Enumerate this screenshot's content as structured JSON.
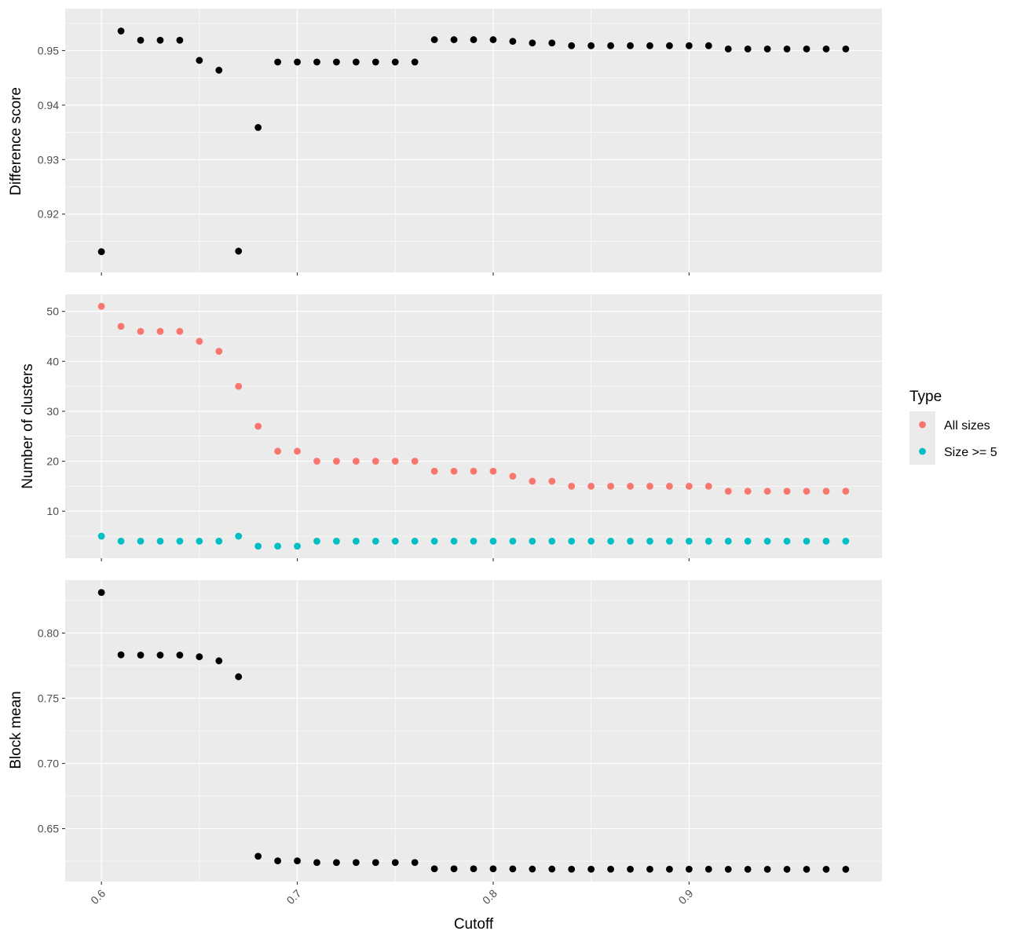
{
  "chart_data": {
    "type": "scatter",
    "xlabel": "Cutoff",
    "x_ticks": [
      "0.6",
      "0.7",
      "0.8",
      "0.9"
    ],
    "xlim": [
      0.5815,
      0.9985
    ],
    "x": [
      0.6,
      0.61,
      0.62,
      0.63,
      0.64,
      0.65,
      0.66,
      0.67,
      0.68,
      0.69,
      0.7,
      0.71,
      0.72,
      0.73,
      0.74,
      0.75,
      0.76,
      0.77,
      0.78,
      0.79,
      0.8,
      0.81,
      0.82,
      0.83,
      0.84,
      0.85,
      0.86,
      0.87,
      0.88,
      0.89,
      0.9,
      0.91,
      0.92,
      0.93,
      0.94,
      0.95,
      0.96,
      0.97,
      0.98
    ],
    "legend": {
      "title": "Type",
      "placement": "right"
    },
    "panels": [
      {
        "ylabel": "Difference score",
        "ylim": [
          0.9093,
          0.9577
        ],
        "y_ticks": [
          "0.92",
          "0.93",
          "0.94",
          "0.95"
        ],
        "series": [
          {
            "color": "#000000",
            "values": [
              0.9131,
              0.9536,
              0.9519,
              0.9519,
              0.9519,
              0.9482,
              0.9464,
              0.9132,
              0.9359,
              0.9479,
              0.9479,
              0.9479,
              0.9479,
              0.9479,
              0.9479,
              0.9479,
              0.9479,
              0.952,
              0.952,
              0.952,
              0.952,
              0.9517,
              0.9514,
              0.9514,
              0.9509,
              0.9509,
              0.9509,
              0.9509,
              0.9509,
              0.9509,
              0.9509,
              0.9509,
              0.9503,
              0.9503,
              0.9503,
              0.9503,
              0.9503,
              0.9503,
              0.9503
            ]
          }
        ]
      },
      {
        "ylabel": "Number of clusters",
        "ylim": [
          0.6,
          53.4
        ],
        "y_ticks": [
          "10",
          "20",
          "30",
          "40",
          "50"
        ],
        "series": [
          {
            "name": "All sizes",
            "color": "#F8766D",
            "values": [
              51,
              47,
              46,
              46,
              46,
              44,
              42,
              35,
              27,
              22,
              22,
              20,
              20,
              20,
              20,
              20,
              20,
              18,
              18,
              18,
              18,
              17,
              16,
              16,
              15,
              15,
              15,
              15,
              15,
              15,
              15,
              15,
              14,
              14,
              14,
              14,
              14,
              14,
              14
            ]
          },
          {
            "name": "Size >= 5",
            "color": "#00BFC4",
            "values": [
              5,
              4,
              4,
              4,
              4,
              4,
              4,
              5,
              3,
              3,
              3,
              4,
              4,
              4,
              4,
              4,
              4,
              4,
              4,
              4,
              4,
              4,
              4,
              4,
              4,
              4,
              4,
              4,
              4,
              4,
              4,
              4,
              4,
              4,
              4,
              4,
              4,
              4,
              4
            ]
          }
        ]
      },
      {
        "ylabel": "Block mean",
        "ylim": [
          0.6094,
          0.8406
        ],
        "y_ticks": [
          "0.65",
          "0.70",
          "0.75",
          "0.80"
        ],
        "series": [
          {
            "color": "#000000",
            "values": [
              0.8311,
              0.7833,
              0.7831,
              0.7831,
              0.7831,
              0.7818,
              0.7787,
              0.7665,
              0.6288,
              0.6253,
              0.6253,
              0.624,
              0.624,
              0.624,
              0.624,
              0.624,
              0.624,
              0.6192,
              0.6192,
              0.6192,
              0.6192,
              0.6191,
              0.619,
              0.619,
              0.6189,
              0.6189,
              0.6189,
              0.6189,
              0.6189,
              0.6189,
              0.6189,
              0.6189,
              0.6188,
              0.6188,
              0.6188,
              0.6188,
              0.6188,
              0.6188,
              0.6188
            ]
          }
        ]
      }
    ]
  }
}
